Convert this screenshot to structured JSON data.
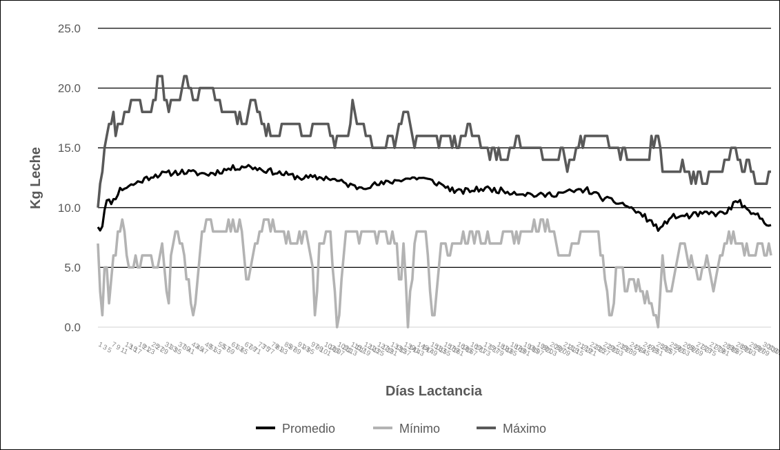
{
  "chart_data": {
    "type": "line",
    "xlabel": "Días Lactancia",
    "ylabel": "Kg Leche",
    "ylim": [
      0,
      25
    ],
    "yticks": [
      "0.0",
      "5.0",
      "10.0",
      "15.0",
      "20.0",
      "25.0"
    ],
    "ytick_values": [
      0,
      5,
      10,
      15,
      20,
      25
    ],
    "grid": "horizontal",
    "legend_position": "bottom",
    "n_points": 305,
    "series": [
      {
        "name": "Promedio",
        "color": "#000000",
        "keyframes": [
          [
            0,
            8.5
          ],
          [
            2,
            8
          ],
          [
            4,
            10.5
          ],
          [
            8,
            10.5
          ],
          [
            12,
            11.5
          ],
          [
            20,
            12
          ],
          [
            30,
            12.7
          ],
          [
            45,
            13
          ],
          [
            60,
            12.8
          ],
          [
            70,
            13.2
          ],
          [
            80,
            13.5
          ],
          [
            95,
            13
          ],
          [
            110,
            12.5
          ],
          [
            125,
            12.5
          ],
          [
            140,
            11.7
          ],
          [
            155,
            12
          ],
          [
            165,
            12.4
          ],
          [
            175,
            12.5
          ],
          [
            185,
            12
          ],
          [
            195,
            11.3
          ],
          [
            210,
            11.6
          ],
          [
            225,
            11.3
          ],
          [
            240,
            11
          ],
          [
            250,
            11.2
          ],
          [
            265,
            11.5
          ],
          [
            275,
            10.7
          ],
          [
            285,
            10.3
          ],
          [
            295,
            9.4
          ],
          [
            300,
            8.8
          ],
          [
            305,
            8.1
          ],
          [
            310,
            9.2
          ],
          [
            320,
            9.3
          ],
          [
            330,
            9.5
          ],
          [
            340,
            9.5
          ],
          [
            345,
            10.3
          ],
          [
            348,
            10.6
          ],
          [
            352,
            9.6
          ],
          [
            358,
            9.3
          ],
          [
            362,
            8.8
          ],
          [
            365,
            8.6
          ]
        ]
      },
      {
        "name": "Mínimo",
        "color": "#b3b3b3",
        "keyframes": [
          [
            0,
            7
          ],
          [
            2,
            0
          ],
          [
            4,
            6
          ],
          [
            6,
            2
          ],
          [
            8,
            5
          ],
          [
            12,
            8
          ],
          [
            14,
            9
          ],
          [
            16,
            5
          ],
          [
            25,
            6
          ],
          [
            32,
            5
          ],
          [
            35,
            7
          ],
          [
            38,
            1
          ],
          [
            40,
            7
          ],
          [
            44,
            8
          ],
          [
            48,
            5
          ],
          [
            52,
            0
          ],
          [
            56,
            8
          ],
          [
            60,
            9
          ],
          [
            66,
            8
          ],
          [
            72,
            9
          ],
          [
            78,
            8
          ],
          [
            80,
            4
          ],
          [
            84,
            6
          ],
          [
            88,
            8
          ],
          [
            92,
            9
          ],
          [
            100,
            8
          ],
          [
            106,
            7
          ],
          [
            112,
            8
          ],
          [
            116,
            6
          ],
          [
            118,
            0
          ],
          [
            120,
            7
          ],
          [
            126,
            8
          ],
          [
            130,
            0
          ],
          [
            134,
            8
          ],
          [
            150,
            8
          ],
          [
            162,
            7
          ],
          [
            164,
            3
          ],
          [
            166,
            7
          ],
          [
            168,
            0
          ],
          [
            172,
            8
          ],
          [
            178,
            8
          ],
          [
            182,
            0
          ],
          [
            186,
            7
          ],
          [
            196,
            7
          ],
          [
            206,
            8
          ],
          [
            214,
            7
          ],
          [
            220,
            7
          ],
          [
            232,
            8
          ],
          [
            244,
            9
          ],
          [
            252,
            6
          ],
          [
            262,
            8
          ],
          [
            270,
            8
          ],
          [
            274,
            6
          ],
          [
            278,
            0
          ],
          [
            282,
            6
          ],
          [
            286,
            3
          ],
          [
            290,
            4
          ],
          [
            294,
            3
          ],
          [
            300,
            2
          ],
          [
            304,
            0
          ],
          [
            306,
            6
          ],
          [
            310,
            2
          ],
          [
            314,
            6
          ],
          [
            318,
            7
          ],
          [
            322,
            5
          ],
          [
            326,
            4
          ],
          [
            330,
            6
          ],
          [
            334,
            3
          ],
          [
            338,
            6
          ],
          [
            342,
            8
          ],
          [
            348,
            7
          ],
          [
            354,
            6
          ],
          [
            360,
            7
          ],
          [
            365,
            6
          ]
        ]
      },
      {
        "name": "Máximo",
        "color": "#595959",
        "keyframes": [
          [
            0,
            10
          ],
          [
            4,
            16
          ],
          [
            8,
            18
          ],
          [
            10,
            16
          ],
          [
            14,
            18
          ],
          [
            20,
            19
          ],
          [
            28,
            18
          ],
          [
            32,
            20
          ],
          [
            34,
            21
          ],
          [
            36,
            19
          ],
          [
            44,
            19
          ],
          [
            48,
            21
          ],
          [
            52,
            19
          ],
          [
            60,
            20
          ],
          [
            64,
            19
          ],
          [
            68,
            18
          ],
          [
            74,
            18
          ],
          [
            80,
            17
          ],
          [
            84,
            19
          ],
          [
            88,
            17
          ],
          [
            94,
            16
          ],
          [
            100,
            17
          ],
          [
            110,
            17
          ],
          [
            114,
            16
          ],
          [
            120,
            17
          ],
          [
            126,
            16
          ],
          [
            136,
            16
          ],
          [
            138,
            18
          ],
          [
            142,
            17
          ],
          [
            146,
            16
          ],
          [
            150,
            15
          ],
          [
            154,
            16
          ],
          [
            160,
            15
          ],
          [
            164,
            17
          ],
          [
            166,
            19
          ],
          [
            170,
            16
          ],
          [
            180,
            16
          ],
          [
            190,
            16
          ],
          [
            196,
            15
          ],
          [
            200,
            17
          ],
          [
            210,
            15
          ],
          [
            220,
            14
          ],
          [
            226,
            16
          ],
          [
            236,
            15
          ],
          [
            246,
            14
          ],
          [
            256,
            14
          ],
          [
            266,
            16
          ],
          [
            272,
            16
          ],
          [
            280,
            15
          ],
          [
            290,
            14
          ],
          [
            296,
            14
          ],
          [
            300,
            15
          ],
          [
            304,
            16
          ],
          [
            306,
            14
          ],
          [
            310,
            13
          ],
          [
            314,
            13
          ],
          [
            318,
            14
          ],
          [
            322,
            12
          ],
          [
            326,
            13
          ],
          [
            330,
            12
          ],
          [
            336,
            13
          ],
          [
            342,
            14
          ],
          [
            346,
            15
          ],
          [
            350,
            13
          ],
          [
            354,
            14
          ],
          [
            358,
            12
          ],
          [
            362,
            12
          ],
          [
            365,
            13
          ]
        ]
      }
    ]
  }
}
